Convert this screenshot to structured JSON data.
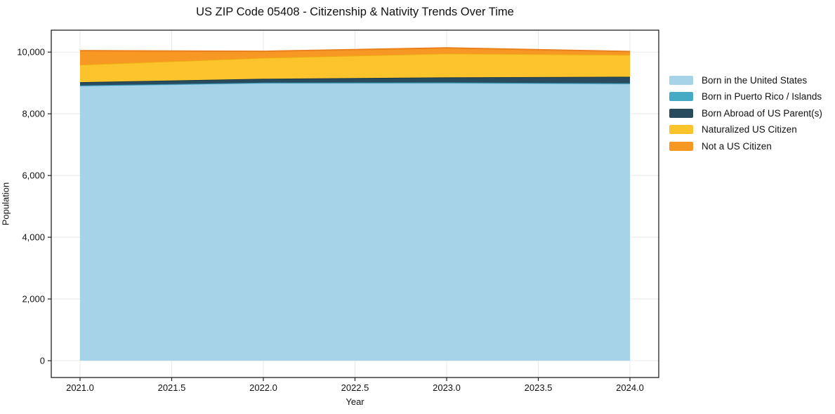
{
  "chart_data": {
    "type": "area",
    "stacked": true,
    "title": "US ZIP Code 05408 - Citizenship & Nativity Trends Over Time",
    "xlabel": "Year",
    "ylabel": "Population",
    "x": [
      2021,
      2022,
      2023,
      2024
    ],
    "xticks": [
      2021.0,
      2021.5,
      2022.0,
      2022.5,
      2023.0,
      2023.5,
      2024.0
    ],
    "yticks": [
      0,
      2000,
      4000,
      6000,
      8000,
      10000
    ],
    "xlim": [
      2020.843,
      2024.157
    ],
    "ylim": [
      -545,
      10710
    ],
    "grid": true,
    "grid_color": "#e8e8e8",
    "spine_color": "#222222",
    "legend_position": "right-outside",
    "series": [
      {
        "name": "Born in the United States",
        "color": "#a7d3e9",
        "edge_color": "#7db9d8",
        "values": [
          8910,
          9000,
          9000,
          8975
        ]
      },
      {
        "name": "Born in Puerto Rico / Islands",
        "color": "#45aac5",
        "edge_color": "#3193b0",
        "values": [
          10,
          10,
          15,
          15
        ]
      },
      {
        "name": "Born Abroad of US Parent(s)",
        "color": "#294b5e",
        "edge_color": "#1d3a4a",
        "values": [
          105,
          125,
          165,
          210
        ]
      },
      {
        "name": "Naturalized US Citizen",
        "color": "#fbc32c",
        "edge_color": "#eeac12",
        "values": [
          565,
          680,
          775,
          710
        ]
      },
      {
        "name": "Not a US Citizen",
        "color": "#f79825",
        "edge_color": "#e8801d",
        "values": [
          455,
          210,
          180,
          110
        ]
      }
    ],
    "totals_by_year": [
      10045,
      10025,
      10135,
      10020
    ]
  }
}
